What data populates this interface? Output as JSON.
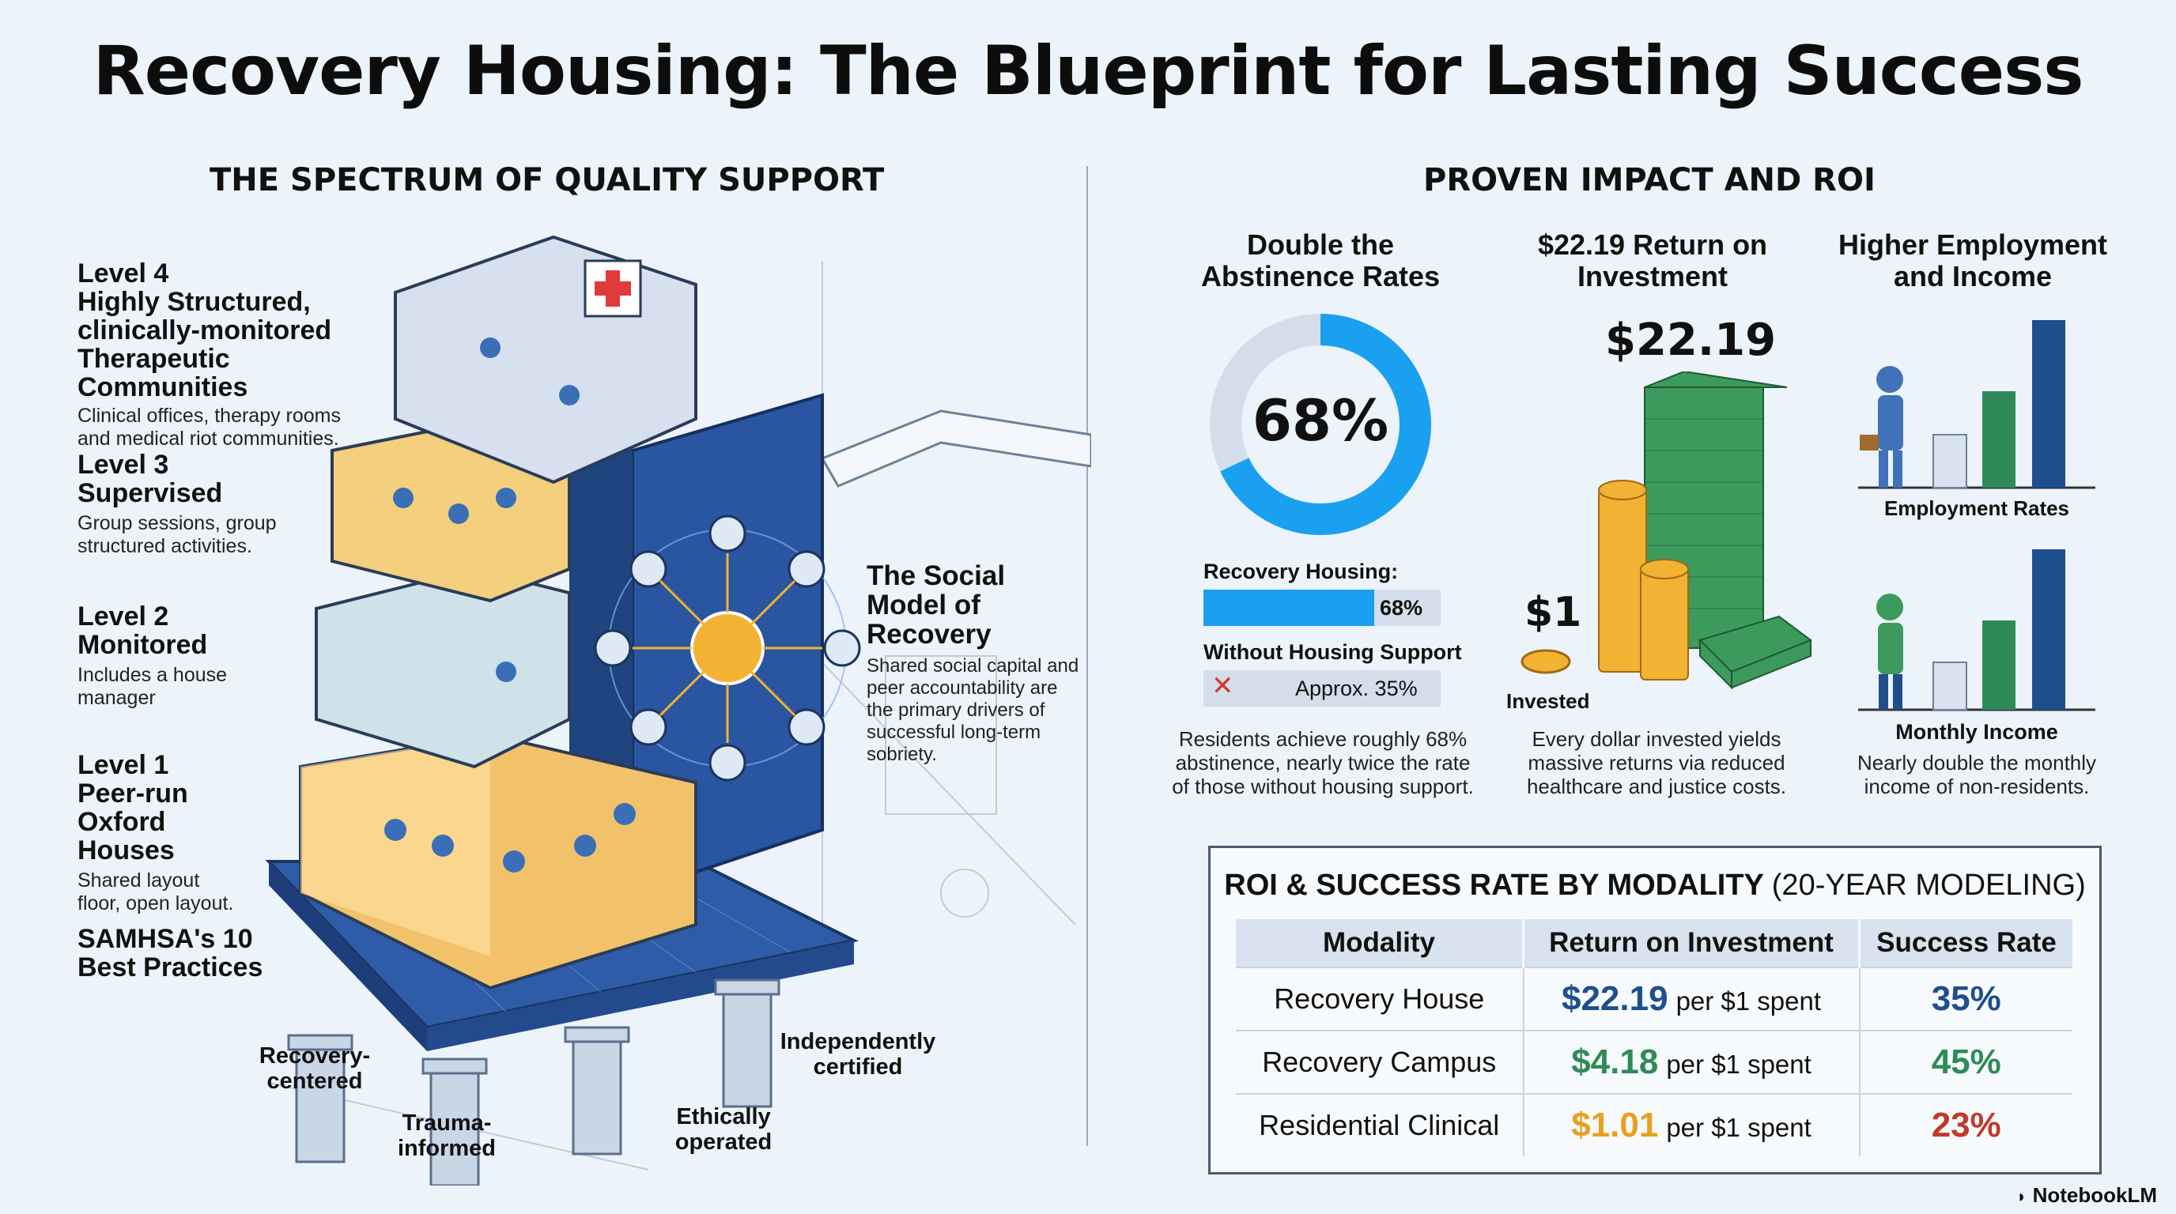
{
  "title": "Recovery Housing: The Blueprint for Lasting Success",
  "left": {
    "heading": "THE SPECTRUM OF QUALITY SUPPORT",
    "levels": [
      {
        "label": "Level 4",
        "name": "Highly Structured, clinically-monitored Therapeutic Communities",
        "desc": "Clinical offices, therapy rooms and medical riot communities."
      },
      {
        "label": "Level 3",
        "name": "Supervised",
        "desc": "Group sessions, group structured activities."
      },
      {
        "label": "Level 2",
        "name": "Monitored",
        "desc": "Includes a house manager"
      },
      {
        "label": "Level 1",
        "name": "Peer-run Oxford Houses",
        "desc": "Shared layout floor, open layout."
      }
    ],
    "samhsa": "SAMHSA's 10 Best Practices",
    "pillars": [
      "Recovery-centered",
      "Trauma-informed",
      "Ethically operated",
      "Independently certified"
    ],
    "social_model": {
      "title": "The Social Model of Recovery",
      "desc": "Shared social capital and peer accountability are the primary drivers of successful long-term sobriety."
    }
  },
  "right": {
    "heading": "PROVEN IMPACT AND ROI",
    "abstinence": {
      "title": "Double the Abstinence Rates",
      "donut_value": "68%",
      "donut_fraction": 0.68,
      "bar1_label": "Recovery Housing:",
      "bar1_value": "68%",
      "bar2_label": "Without Housing Support",
      "bar2_value": "Approx. 35%",
      "desc": "Residents achieve roughly 68% abstinence, nearly twice the rate of those without housing support."
    },
    "roi": {
      "title": "$22.19 Return on Investment",
      "big_value": "$22.19",
      "small_value": "$1",
      "small_label": "Invested",
      "desc": "Every dollar invested yields massive returns via reduced healthcare and justice costs."
    },
    "employment": {
      "title": "Higher Employment and Income",
      "chart1_label": "Employment Rates",
      "chart2_label": "Monthly Income",
      "desc": "Nearly double the monthly income of non-residents."
    },
    "table": {
      "title": "ROI & SUCCESS RATE BY MODALITY",
      "subtitle": "(20-YEAR MODELING)",
      "headers": [
        "Modality",
        "Return on Investment",
        "Success Rate"
      ],
      "rows": [
        {
          "modality": "Recovery House",
          "roi": "$22.19",
          "per": "per $1 spent",
          "rate": "35%",
          "color": "#1f4e8c"
        },
        {
          "modality": "Recovery Campus",
          "roi": "$4.18",
          "per": "per $1 spent",
          "rate": "45%",
          "color": "#2e8b57"
        },
        {
          "modality": "Residential Clinical",
          "roi": "$1.01",
          "per": "per $1 spent",
          "rate": "23%",
          "color": "#e8a020"
        }
      ]
    }
  },
  "brand": "NotebookLM",
  "colors": {
    "blue": "#1aa0f0",
    "navy": "#1f4e8c",
    "green": "#2e8b57",
    "orange": "#e8a020",
    "red": "#c0392b"
  }
}
